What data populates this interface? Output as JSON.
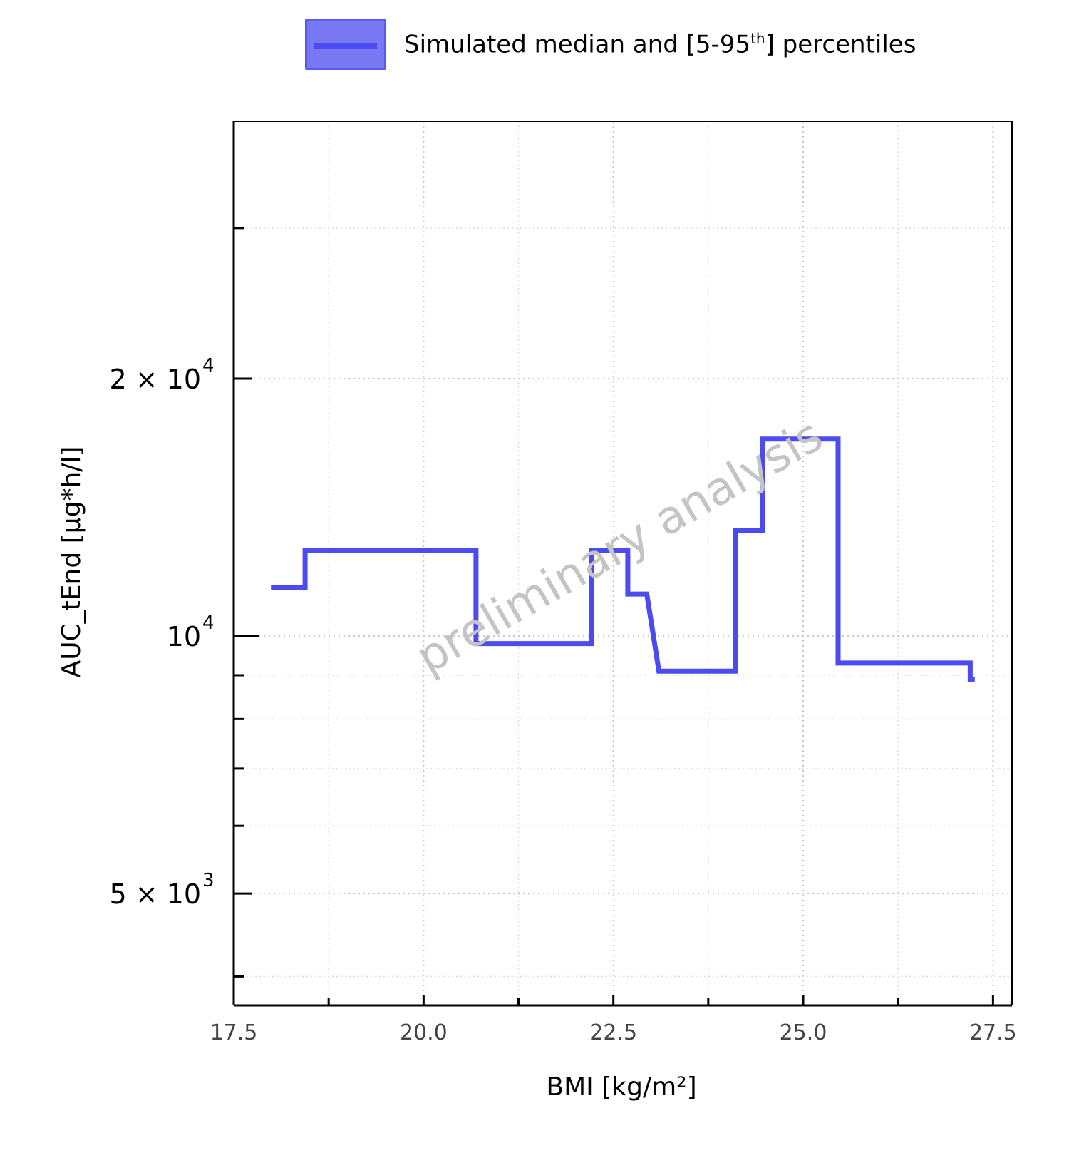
{
  "legend": {
    "label_before": "Simulated median and [5-95",
    "label_sup": "th",
    "label_after": "] percentiles"
  },
  "watermark": "preliminary analysis",
  "chart_data": {
    "type": "line",
    "line_style": "step",
    "xlabel": "BMI [kg/m²]",
    "ylabel": "AUC_tEnd [µg*h/l]",
    "xlim": [
      17.5,
      27.75
    ],
    "ylim": [
      3700,
      40000
    ],
    "y_scale": "log",
    "grid": true,
    "legend_position": "top",
    "x_ticks": [
      {
        "value": 17.5,
        "label": "17.5"
      },
      {
        "value": 20.0,
        "label": "20.0"
      },
      {
        "value": 22.5,
        "label": "22.5"
      },
      {
        "value": 25.0,
        "label": "25.0"
      },
      {
        "value": 27.5,
        "label": "27.5"
      }
    ],
    "y_ticks": [
      {
        "value": 5000,
        "mantissa": "5 × 10",
        "exponent": "3"
      },
      {
        "value": 10000,
        "mantissa": "10",
        "exponent": "4"
      },
      {
        "value": 20000,
        "mantissa": "2 × 10",
        "exponent": "4"
      }
    ],
    "series": [
      {
        "name": "Simulated median and [5-95th] percentiles",
        "color": "#4b4bef",
        "x": [
          17.99,
          18.44,
          18.44,
          20.69,
          20.69,
          22.21,
          22.21,
          22.69,
          22.69,
          22.94,
          23.1,
          24.11,
          24.11,
          24.46,
          24.46,
          25.46,
          25.46,
          27.2,
          27.2,
          27.26
        ],
        "y": [
          11400,
          11400,
          12600,
          12600,
          9800,
          9800,
          12600,
          12600,
          11200,
          11200,
          9100,
          9100,
          13300,
          13300,
          17000,
          17000,
          9300,
          9300,
          8900,
          8900
        ]
      }
    ]
  }
}
